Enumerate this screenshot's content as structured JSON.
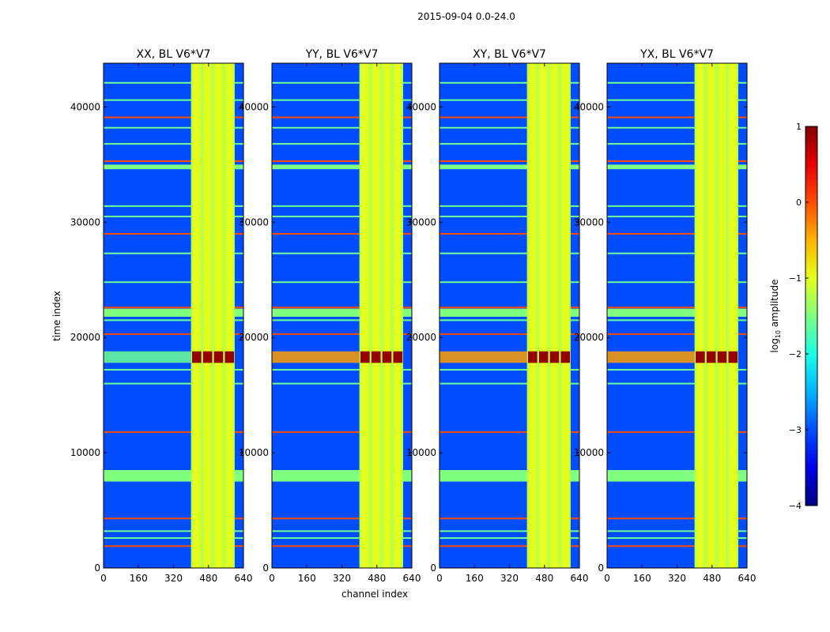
{
  "suptitle": "2015-09-04 0.0-24.0",
  "chart_data": {
    "type": "heatmap",
    "xlabel": "channel index",
    "ylabel": "time index",
    "xticks": [
      0,
      160,
      320,
      480,
      640
    ],
    "yticks": [
      0,
      10000,
      20000,
      30000,
      40000
    ],
    "xlim": [
      0,
      640
    ],
    "ylim": [
      0,
      43800
    ],
    "panels": [
      {
        "title": "XX, BL V6*V7"
      },
      {
        "title": "YY, BL V6*V7"
      },
      {
        "title": "XY, BL V6*V7"
      },
      {
        "title": "YX, BL V6*V7"
      }
    ],
    "colorbar": {
      "label_main": "log",
      "label_sub": "10",
      "label_tail": " amplitude",
      "ticks": [
        "1",
        "0",
        "−1",
        "−2",
        "−3",
        "−4"
      ],
      "range": [
        -4,
        1
      ],
      "colormap": "jet"
    },
    "features": {
      "band_channels": [
        400,
        600
      ],
      "band_level": -1.2,
      "background_level": -3.0,
      "rfi_rows_strong": [
        1900,
        2600,
        3200,
        4300,
        7700,
        8300,
        11800,
        16000,
        17200,
        20300,
        21500,
        22100,
        22600,
        24800,
        27300,
        29000,
        30500,
        31400,
        35300,
        36800,
        38200,
        39100,
        40600,
        42100
      ],
      "rfi_rows_blocks": [
        [
          7500,
          8500
        ],
        [
          21800,
          22500
        ],
        [
          34600,
          35000
        ]
      ],
      "saturated_event": {
        "t_range": [
          17800,
          18800
        ],
        "level": 0.9
      }
    }
  }
}
